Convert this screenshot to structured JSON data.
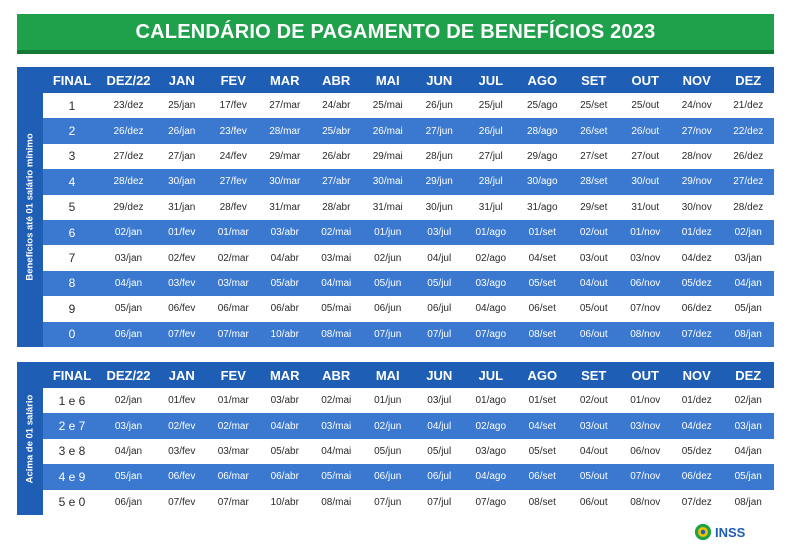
{
  "title": "CALENDÁRIO DE PAGAMENTO DE BENEFÍCIOS 2023",
  "colors": {
    "green": "#1fa04a",
    "blue_header": "#1e5eb5",
    "blue_row": "#3b78cf"
  },
  "columns": [
    "FINAL",
    "DEZ/22",
    "JAN",
    "FEV",
    "MAR",
    "ABR",
    "MAI",
    "JUN",
    "JUL",
    "AGO",
    "SET",
    "OUT",
    "NOV",
    "DEZ"
  ],
  "section1": {
    "side_label": "Benefícios até 01 salário mínimo",
    "rows": [
      [
        "1",
        "23/dez",
        "25/jan",
        "17/fev",
        "27/mar",
        "24/abr",
        "25/mai",
        "26/jun",
        "25/jul",
        "25/ago",
        "25/set",
        "25/out",
        "24/nov",
        "21/dez"
      ],
      [
        "2",
        "26/dez",
        "26/jan",
        "23/fev",
        "28/mar",
        "25/abr",
        "26/mai",
        "27/jun",
        "26/jul",
        "28/ago",
        "26/set",
        "26/out",
        "27/nov",
        "22/dez"
      ],
      [
        "3",
        "27/dez",
        "27/jan",
        "24/fev",
        "29/mar",
        "26/abr",
        "29/mai",
        "28/jun",
        "27/jul",
        "29/ago",
        "27/set",
        "27/out",
        "28/nov",
        "26/dez"
      ],
      [
        "4",
        "28/dez",
        "30/jan",
        "27/fev",
        "30/mar",
        "27/abr",
        "30/mai",
        "29/jun",
        "28/jul",
        "30/ago",
        "28/set",
        "30/out",
        "29/nov",
        "27/dez"
      ],
      [
        "5",
        "29/dez",
        "31/jan",
        "28/fev",
        "31/mar",
        "28/abr",
        "31/mai",
        "30/jun",
        "31/jul",
        "31/ago",
        "29/set",
        "31/out",
        "30/nov",
        "28/dez"
      ],
      [
        "6",
        "02/jan",
        "01/fev",
        "01/mar",
        "03/abr",
        "02/mai",
        "01/jun",
        "03/jul",
        "01/ago",
        "01/set",
        "02/out",
        "01/nov",
        "01/dez",
        "02/jan"
      ],
      [
        "7",
        "03/jan",
        "02/fev",
        "02/mar",
        "04/abr",
        "03/mai",
        "02/jun",
        "04/jul",
        "02/ago",
        "04/set",
        "03/out",
        "03/nov",
        "04/dez",
        "03/jan"
      ],
      [
        "8",
        "04/jan",
        "03/fev",
        "03/mar",
        "05/abr",
        "04/mai",
        "05/jun",
        "05/jul",
        "03/ago",
        "05/set",
        "04/out",
        "06/nov",
        "05/dez",
        "04/jan"
      ],
      [
        "9",
        "05/jan",
        "06/fev",
        "06/mar",
        "06/abr",
        "05/mai",
        "06/jun",
        "06/jul",
        "04/ago",
        "06/set",
        "05/out",
        "07/nov",
        "06/dez",
        "05/jan"
      ],
      [
        "0",
        "06/jan",
        "07/fev",
        "07/mar",
        "10/abr",
        "08/mai",
        "07/jun",
        "07/jul",
        "07/ago",
        "08/set",
        "06/out",
        "08/nov",
        "07/dez",
        "08/jan"
      ]
    ]
  },
  "section2": {
    "side_label": "Acima de 01 salário",
    "rows": [
      [
        "1 e 6",
        "02/jan",
        "01/fev",
        "01/mar",
        "03/abr",
        "02/mai",
        "01/jun",
        "03/jul",
        "01/ago",
        "01/set",
        "02/out",
        "01/nov",
        "01/dez",
        "02/jan"
      ],
      [
        "2 e 7",
        "03/jan",
        "02/fev",
        "02/mar",
        "04/abr",
        "03/mai",
        "02/jun",
        "04/jul",
        "02/ago",
        "04/set",
        "03/out",
        "03/nov",
        "04/dez",
        "03/jan"
      ],
      [
        "3 e 8",
        "04/jan",
        "03/fev",
        "03/mar",
        "05/abr",
        "04/mai",
        "05/jun",
        "05/jul",
        "03/ago",
        "05/set",
        "04/out",
        "06/nov",
        "05/dez",
        "04/jan"
      ],
      [
        "4 e 9",
        "05/jan",
        "06/fev",
        "06/mar",
        "06/abr",
        "05/mai",
        "06/jun",
        "06/jul",
        "04/ago",
        "06/set",
        "05/out",
        "07/nov",
        "06/dez",
        "05/jan"
      ],
      [
        "5 e 0",
        "06/jan",
        "07/fev",
        "07/mar",
        "10/abr",
        "08/mai",
        "07/jun",
        "07/jul",
        "07/ago",
        "08/set",
        "06/out",
        "08/nov",
        "07/dez",
        "08/jan"
      ]
    ]
  },
  "logo": {
    "text": "INSS",
    "icon": "inss-logo-icon"
  }
}
